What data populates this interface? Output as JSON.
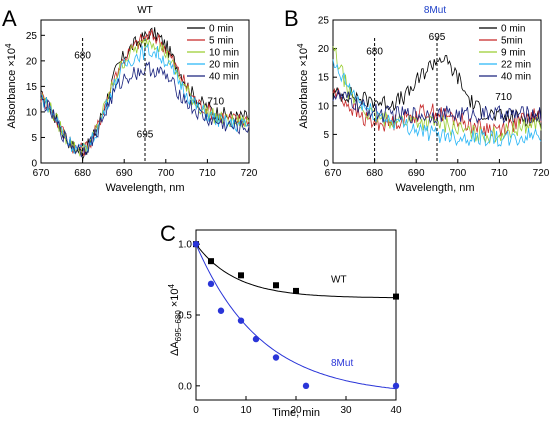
{
  "chart_data": [
    {
      "panel_label": "A",
      "type": "line",
      "title": "WT",
      "xlabel": "Wavelength, nm",
      "ylabel_main": "Absorbance ×10",
      "ylabel_exp": "4",
      "xlim": [
        670,
        720
      ],
      "ylim": [
        0,
        28
      ],
      "x_ticks": [
        670,
        680,
        690,
        700,
        710,
        720
      ],
      "y_ticks": [
        0,
        5,
        10,
        15,
        20,
        25
      ],
      "legend_position": "top-right",
      "annotations": [
        {
          "text": "680",
          "x": 680,
          "y": 20.5
        },
        {
          "text": "695",
          "x": 695,
          "y": 5
        },
        {
          "text": "710",
          "x": 712,
          "y": 11.5
        }
      ],
      "markers": [
        680,
        695
      ],
      "series": [
        {
          "name": "0 min",
          "color": "#000000",
          "x": [
            670,
            672,
            674,
            676,
            678,
            680,
            682,
            684,
            686,
            688,
            690,
            692,
            694,
            696,
            698,
            700,
            702,
            704,
            706,
            708,
            710,
            712,
            714,
            716,
            718,
            720
          ],
          "y": [
            13,
            11,
            8,
            5,
            3,
            2,
            4,
            8,
            13,
            18,
            21,
            23,
            24,
            25.5,
            25,
            23,
            20,
            17,
            14,
            12,
            11,
            10,
            9.5,
            9,
            9,
            9
          ]
        },
        {
          "name": "5 min",
          "color": "#c62828",
          "x": [
            670,
            672,
            674,
            676,
            678,
            680,
            682,
            684,
            686,
            688,
            690,
            692,
            694,
            696,
            698,
            700,
            702,
            704,
            706,
            708,
            710,
            712,
            714,
            716,
            718,
            720
          ],
          "y": [
            13,
            11,
            8,
            5,
            3,
            2.5,
            4,
            8,
            13,
            17.5,
            20.5,
            22.5,
            24,
            25,
            24.5,
            22.5,
            19.5,
            16.5,
            13.5,
            11.5,
            10.5,
            9.5,
            9,
            8.5,
            8.5,
            8.5
          ]
        },
        {
          "name": "10 min",
          "color": "#9acd32",
          "x": [
            670,
            672,
            674,
            676,
            678,
            680,
            682,
            684,
            686,
            688,
            690,
            692,
            694,
            696,
            698,
            700,
            702,
            704,
            706,
            708,
            710,
            712,
            714,
            716,
            718,
            720
          ],
          "y": [
            13,
            11,
            8,
            5,
            3,
            2.5,
            4,
            8,
            12.5,
            17,
            20,
            22,
            23,
            24,
            23.5,
            21.5,
            18.5,
            15.5,
            13,
            11,
            10,
            9,
            8.5,
            8,
            8,
            8
          ]
        },
        {
          "name": "20 min",
          "color": "#29b6f6",
          "x": [
            670,
            672,
            674,
            676,
            678,
            680,
            682,
            684,
            686,
            688,
            690,
            692,
            694,
            696,
            698,
            700,
            702,
            704,
            706,
            708,
            710,
            712,
            714,
            716,
            718,
            720
          ],
          "y": [
            13,
            11,
            8,
            5,
            3,
            2.5,
            4,
            7.5,
            12,
            16,
            19,
            20.5,
            21.5,
            22,
            21.5,
            20,
            17.5,
            15,
            12.5,
            10.5,
            9.5,
            8.5,
            8,
            7.5,
            7.5,
            7.5
          ]
        },
        {
          "name": "40 min",
          "color": "#1a237e",
          "x": [
            670,
            672,
            674,
            676,
            678,
            680,
            682,
            684,
            686,
            688,
            690,
            692,
            694,
            696,
            698,
            700,
            702,
            704,
            706,
            708,
            710,
            712,
            714,
            716,
            718,
            720
          ],
          "y": [
            12.5,
            10.5,
            7.5,
            4.5,
            3,
            2.5,
            4,
            7,
            11,
            14.5,
            16.5,
            17.5,
            18,
            18.5,
            18,
            17,
            15,
            13,
            11,
            9.5,
            8.5,
            8,
            7.5,
            7,
            7,
            7
          ]
        }
      ]
    },
    {
      "panel_label": "B",
      "type": "line",
      "title": "8Mut",
      "title_color": "#1e40c8",
      "xlabel": "Wavelength, nm",
      "ylabel_main": "Absorbance ×10",
      "ylabel_exp": "4",
      "xlim": [
        670,
        720
      ],
      "ylim": [
        0,
        25
      ],
      "x_ticks": [
        670,
        680,
        690,
        700,
        710,
        720
      ],
      "y_ticks": [
        0,
        5,
        10,
        15,
        20,
        25
      ],
      "legend_position": "top-right",
      "annotations": [
        {
          "text": "680",
          "x": 680,
          "y": 19
        },
        {
          "text": "695",
          "x": 695,
          "y": 21.5
        },
        {
          "text": "710",
          "x": 711,
          "y": 11
        }
      ],
      "markers": [
        680,
        695
      ],
      "series": [
        {
          "name": "0 min",
          "color": "#000000",
          "x": [
            670,
            672,
            674,
            676,
            678,
            680,
            682,
            684,
            686,
            688,
            690,
            692,
            694,
            696,
            698,
            700,
            702,
            704,
            706,
            708,
            710,
            712,
            714,
            716,
            718,
            720
          ],
          "y": [
            12,
            12,
            12,
            11.5,
            11,
            11,
            10.5,
            10.5,
            11,
            12,
            14,
            16,
            17.5,
            18.5,
            17,
            15,
            12,
            10,
            9,
            8.5,
            8,
            8,
            8,
            8,
            8,
            8
          ]
        },
        {
          "name": "5min",
          "color": "#c62828",
          "x": [
            670,
            672,
            674,
            676,
            678,
            680,
            682,
            684,
            686,
            688,
            690,
            692,
            694,
            696,
            698,
            700,
            702,
            704,
            706,
            708,
            710,
            712,
            714,
            716,
            718,
            720
          ],
          "y": [
            12.5,
            11.5,
            10,
            8.5,
            7.5,
            7,
            7,
            7,
            7.5,
            8,
            8.5,
            9,
            9,
            8.5,
            8,
            7.5,
            7,
            6.5,
            6,
            6,
            6,
            6.5,
            7,
            7.5,
            8,
            8.5
          ]
        },
        {
          "name": "9 min",
          "color": "#9acd32",
          "x": [
            670,
            672,
            674,
            676,
            678,
            680,
            682,
            684,
            686,
            688,
            690,
            692,
            694,
            696,
            698,
            700,
            702,
            704,
            706,
            708,
            710,
            712,
            714,
            716,
            718,
            720
          ],
          "y": [
            20,
            16,
            12,
            10,
            9,
            8,
            7.5,
            7.5,
            7.5,
            7.5,
            7.5,
            7,
            7,
            7,
            6.5,
            6,
            5.5,
            5,
            5,
            5,
            5,
            5.5,
            6,
            6.5,
            7,
            7
          ]
        },
        {
          "name": "22 min",
          "color": "#29b6f6",
          "x": [
            670,
            672,
            674,
            676,
            678,
            680,
            682,
            684,
            686,
            688,
            690,
            692,
            694,
            696,
            698,
            700,
            702,
            704,
            706,
            708,
            710,
            712,
            714,
            716,
            718,
            720
          ],
          "y": [
            17,
            15,
            13,
            11,
            9.5,
            8.5,
            8,
            7.5,
            7,
            6.5,
            6,
            5.5,
            5,
            5,
            5,
            4.5,
            4.5,
            4.5,
            4.5,
            4.5,
            4,
            4,
            4,
            4.5,
            5,
            5
          ]
        },
        {
          "name": "40 min",
          "color": "#1a237e",
          "x": [
            670,
            672,
            674,
            676,
            678,
            680,
            682,
            684,
            686,
            688,
            690,
            692,
            694,
            696,
            698,
            700,
            702,
            704,
            706,
            708,
            710,
            712,
            714,
            716,
            718,
            720
          ],
          "y": [
            12,
            11.5,
            11,
            10,
            9.5,
            9,
            8.5,
            8.5,
            8.5,
            8.5,
            8.5,
            8.5,
            8.5,
            8.5,
            8.5,
            8.5,
            8.5,
            8.5,
            8.5,
            8.5,
            8.5,
            8.5,
            8.5,
            8.5,
            8.5,
            8.5
          ]
        }
      ]
    },
    {
      "panel_label": "C",
      "type": "scatter",
      "xlabel": "Time, min",
      "ylabel_main": "ΔA",
      "ylabel_sub": "695–680",
      "ylabel_tail": " ×10",
      "ylabel_exp": "4",
      "xlim": [
        0,
        40
      ],
      "ylim": [
        -0.1,
        1.1
      ],
      "x_ticks": [
        0,
        10,
        20,
        30,
        40
      ],
      "y_ticks": [
        0.0,
        0.5,
        1.0
      ],
      "y_tick_labels": [
        "0.0",
        "0.5",
        "1.0"
      ],
      "series": [
        {
          "name": "WT",
          "color": "#000000",
          "marker": "square",
          "x": [
            0,
            3,
            9,
            16,
            20,
            40
          ],
          "y": [
            1.0,
            0.88,
            0.78,
            0.71,
            0.67,
            0.63
          ],
          "fit": {
            "y0": 0.62,
            "a": 0.38,
            "tau": 8
          }
        },
        {
          "name": "8Mut",
          "color": "#2a35d8",
          "marker": "circle",
          "x": [
            0,
            3,
            5,
            9,
            12,
            16,
            22,
            40
          ],
          "y": [
            1.0,
            0.72,
            0.53,
            0.46,
            0.33,
            0.2,
            0.0,
            0.0
          ],
          "fit": {
            "y0": -0.07,
            "a": 1.07,
            "tau": 13
          }
        }
      ]
    }
  ]
}
